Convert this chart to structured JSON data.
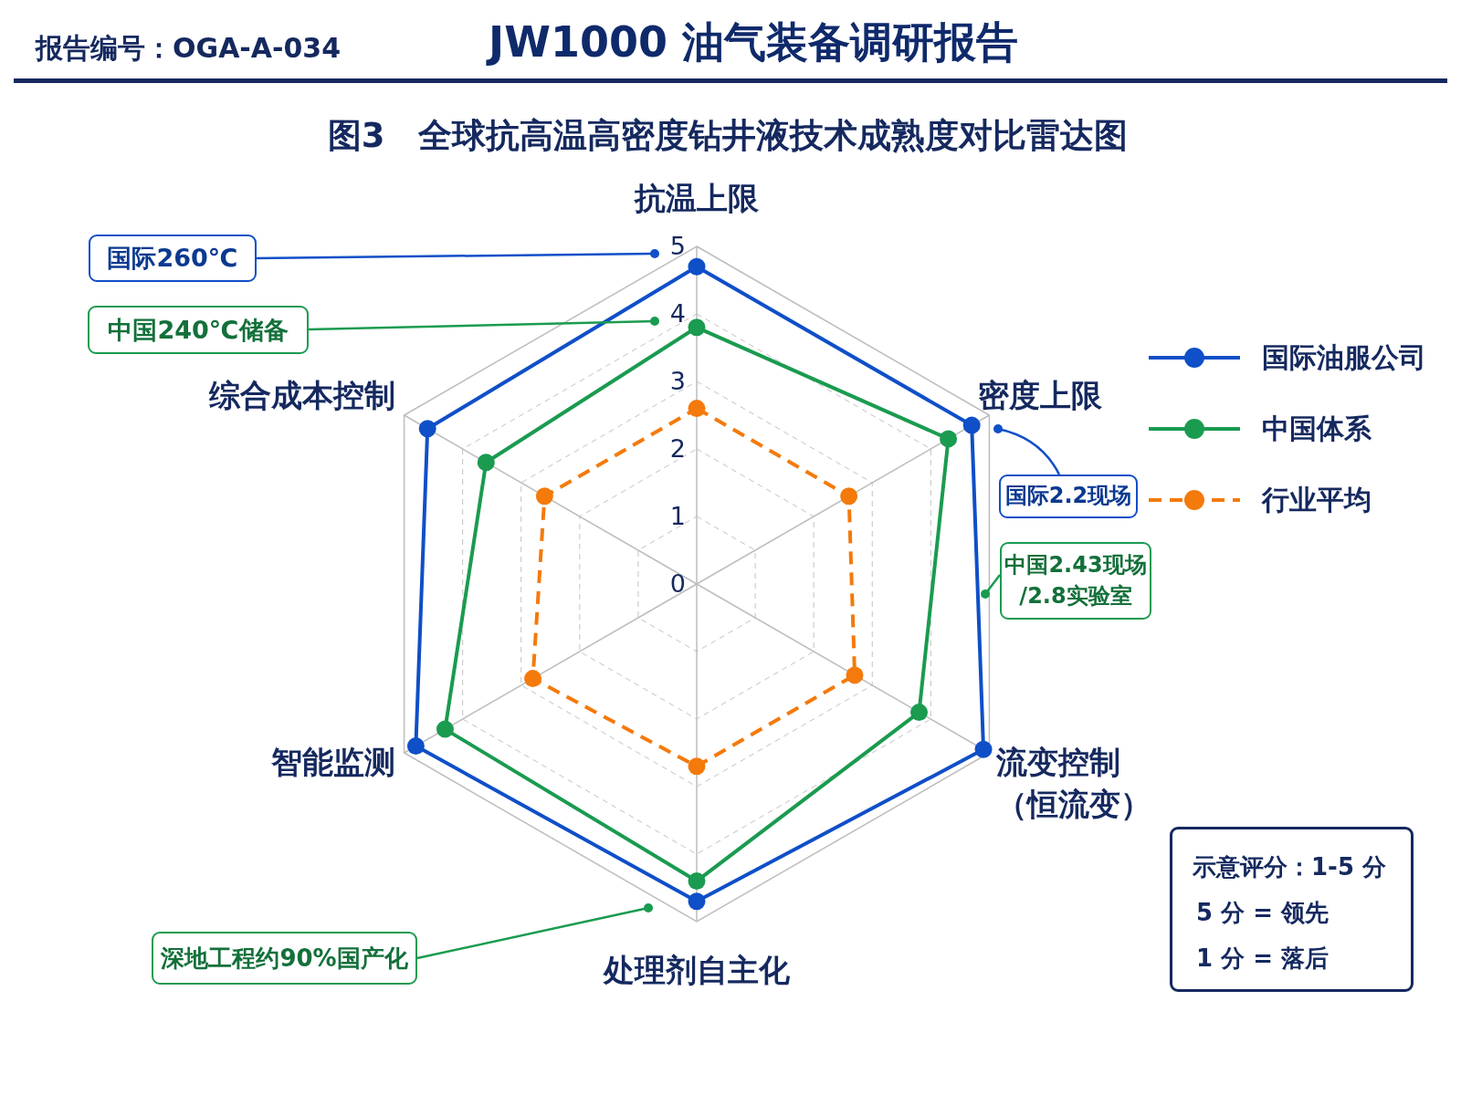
{
  "chart_data": {
    "type": "radar",
    "title": "JW1000 油气装备调研报告",
    "subtitle": "图3　全球抗高温高密度钻井液技术成熟度对比雷达图",
    "categories": [
      "抗温上限",
      "密度上限",
      "流变控制（恒流变）",
      "处理剂自主化",
      "智能监测",
      "综合成本控制"
    ],
    "series": [
      {
        "name": "国际油服公司",
        "color": "#0f4fc8",
        "values": [
          4.7,
          4.7,
          4.9,
          4.7,
          4.8,
          4.6
        ]
      },
      {
        "name": "中国体系",
        "color": "#1a9b50",
        "values": [
          3.8,
          4.3,
          3.8,
          4.4,
          4.3,
          3.6
        ]
      },
      {
        "name": "行业平均",
        "color": "#f47a0c",
        "values": [
          2.6,
          2.6,
          2.7,
          2.7,
          2.8,
          2.6
        ],
        "line_style": "dashed"
      }
    ],
    "ylim": [
      0,
      5
    ],
    "yticks": [
      0,
      1,
      2,
      3,
      4,
      5
    ],
    "grid": true,
    "legend": "right",
    "marker": "circle",
    "line_style": "solid",
    "annotations": [
      "报告编号：OGA-A-034",
      "国际260℃",
      "中国240℃储备",
      "国际2.2现场",
      "中国2.43现场/2.8实验室",
      "深地工程约90%国产化",
      "示意评分：1-5 分",
      "5 分 = 领先",
      "1 分 = 落后"
    ]
  }
}
